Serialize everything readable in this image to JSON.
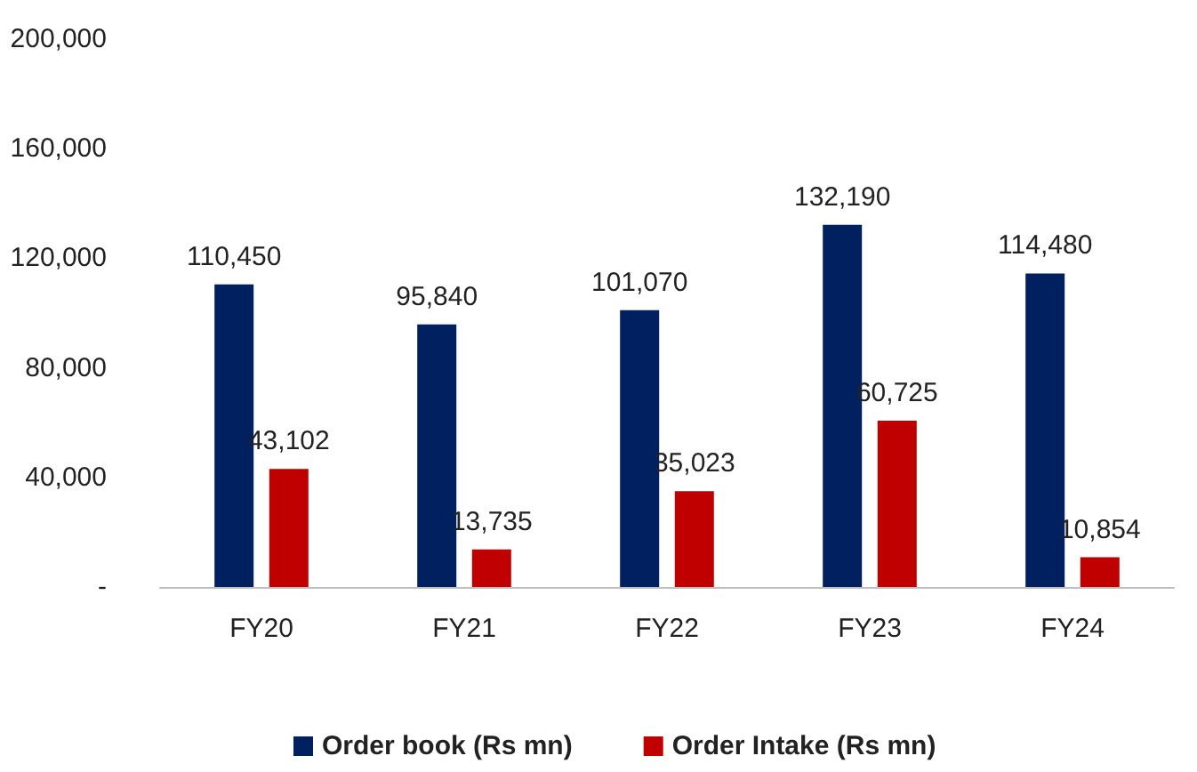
{
  "chart_data": {
    "type": "bar",
    "categories": [
      "FY20",
      "FY21",
      "FY22",
      "FY23",
      "FY24"
    ],
    "series": [
      {
        "name": "Order book (Rs mn)",
        "color": "#002060",
        "values": [
          110450,
          95840,
          101070,
          132190,
          114480
        ],
        "value_labels": [
          "110,450",
          "95,840",
          "101,070",
          "132,190",
          "114,480"
        ]
      },
      {
        "name": "Order Intake (Rs mn)",
        "color": "#c00000",
        "values": [
          43102,
          13735,
          35023,
          60725,
          10854
        ],
        "value_labels": [
          "43,102",
          "13,735",
          "35,023",
          "60,725",
          "10,854"
        ]
      }
    ],
    "ylim": [
      0,
      200000
    ],
    "yticks": [
      {
        "value": 0,
        "label": "-"
      },
      {
        "value": 40000,
        "label": "40,000"
      },
      {
        "value": 80000,
        "label": "80,000"
      },
      {
        "value": 120000,
        "label": "120,000"
      },
      {
        "value": 160000,
        "label": "160,000"
      },
      {
        "value": 200000,
        "label": "200,000"
      }
    ],
    "grid": false,
    "legend": "bottom"
  }
}
